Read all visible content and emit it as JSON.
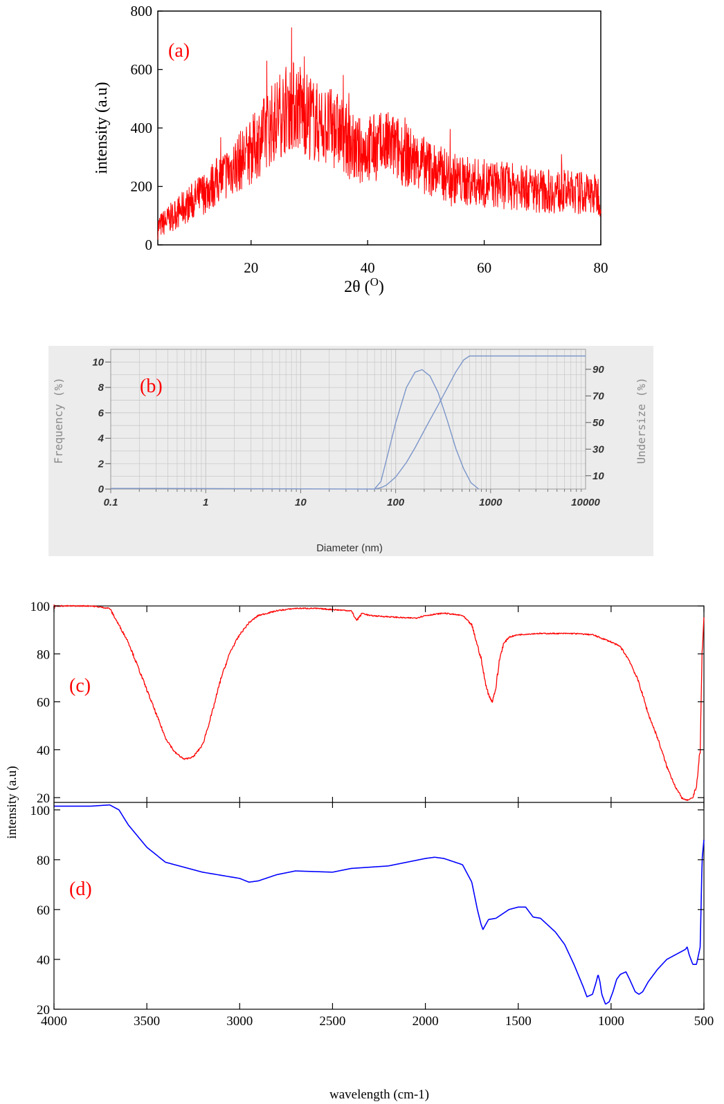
{
  "colors": {
    "xrd": "#ff0000",
    "dls": "#7b95c9",
    "ftir_c": "#ff0000",
    "ftir_d": "#0000ff",
    "panel_label": "#ff0000",
    "dls_background": "#ececec",
    "dls_grid": "#c8c8c8",
    "dls_text": "#8a8a8a"
  },
  "chart_data": [
    {
      "panel": "a",
      "panel_label": "(a)",
      "type": "line",
      "noisy": true,
      "xlabel": "2θ (O)",
      "ylabel": "intensity (a.u)",
      "xlim": [
        4,
        80
      ],
      "ylim": [
        0,
        800
      ],
      "xticks": [
        20,
        40,
        60,
        80
      ],
      "yticks": [
        0,
        200,
        400,
        600,
        800
      ],
      "series": [
        {
          "x": [
            4,
            8,
            12,
            16,
            20,
            23,
            26,
            28,
            31,
            35,
            38,
            40,
            44,
            48,
            52,
            56,
            60,
            65,
            70,
            75,
            80
          ],
          "y": [
            60,
            120,
            180,
            250,
            320,
            400,
            470,
            480,
            420,
            390,
            320,
            330,
            340,
            290,
            250,
            220,
            210,
            200,
            185,
            180,
            170
          ]
        }
      ],
      "peak_max": 750
    },
    {
      "panel": "b",
      "panel_label": "(b)",
      "type": "line",
      "xscale": "log",
      "xlabel": "Diameter (nm)",
      "ylabel": "Frequency (%)",
      "y2label": "Undersize (%)",
      "xlim": [
        0.1,
        10000
      ],
      "ylim": [
        0,
        11
      ],
      "y2lim": [
        0,
        105
      ],
      "xticks": [
        "0.1",
        "1",
        "10",
        "100",
        "1000",
        "10000"
      ],
      "yticks": [
        "0",
        "2",
        "4",
        "6",
        "8",
        "10"
      ],
      "y2ticks": [
        "10",
        "30",
        "50",
        "70",
        "90"
      ],
      "grid": true,
      "series": [
        {
          "axis": "left",
          "x": [
            0.1,
            0.28,
            60,
            70,
            80,
            100,
            130,
            160,
            190,
            230,
            280,
            350,
            430,
            520,
            620,
            750
          ],
          "y": [
            0.05,
            0.05,
            0,
            0.6,
            2.3,
            5.2,
            8.0,
            9.2,
            9.4,
            8.9,
            7.6,
            5.4,
            3.2,
            1.6,
            0.5,
            0
          ]
        },
        {
          "axis": "right",
          "x": [
            60,
            70,
            80,
            100,
            130,
            160,
            190,
            230,
            280,
            350,
            430,
            520,
            600,
            700,
            10000
          ],
          "y": [
            0,
            1,
            3,
            9,
            20,
            31,
            41,
            52,
            63,
            76,
            88,
            97,
            100,
            100,
            100
          ]
        }
      ]
    },
    {
      "panel": "c",
      "panel_label": "(c)",
      "type": "line",
      "xlim": [
        4000,
        500
      ],
      "ylim": [
        18,
        100
      ],
      "yticks": [
        20,
        40,
        60,
        80,
        100
      ],
      "series": [
        {
          "x": [
            4000,
            3800,
            3700,
            3600,
            3500,
            3400,
            3350,
            3300,
            3250,
            3200,
            3150,
            3100,
            3050,
            3000,
            2950,
            2900,
            2800,
            2700,
            2600,
            2400,
            2370,
            2340,
            2300,
            2100,
            2050,
            2000,
            1900,
            1800,
            1750,
            1700,
            1680,
            1660,
            1640,
            1620,
            1600,
            1580,
            1550,
            1500,
            1400,
            1200,
            1100,
            1000,
            950,
            900,
            850,
            800,
            750,
            700,
            650,
            620,
            600,
            580,
            560,
            540,
            520,
            510,
            500
          ],
          "y": [
            100,
            100,
            99,
            85,
            65,
            45,
            39,
            36,
            37,
            42,
            55,
            70,
            81,
            88,
            93,
            96,
            98,
            99,
            99,
            98,
            94,
            97,
            96,
            95,
            95,
            96,
            97,
            96,
            92,
            78,
            69,
            63,
            60,
            66,
            78,
            84,
            87,
            88,
            88.5,
            88.5,
            88,
            85,
            83,
            77,
            68,
            55,
            45,
            33,
            24,
            20,
            19,
            19,
            20,
            25,
            40,
            80,
            95
          ]
        }
      ]
    },
    {
      "panel": "d",
      "panel_label": "(d)",
      "type": "line",
      "xlabel": "wavelength (cm-1)",
      "shared_ylabel": "intensity (a.u)",
      "xlim": [
        4000,
        500
      ],
      "ylim": [
        20,
        103
      ],
      "xticks": [
        4000,
        3500,
        3000,
        2500,
        2000,
        1500,
        1000,
        500
      ],
      "yticks": [
        20,
        40,
        60,
        80,
        100
      ],
      "series": [
        {
          "x": [
            4000,
            3800,
            3700,
            3650,
            3600,
            3500,
            3400,
            3200,
            3000,
            2950,
            2900,
            2800,
            2700,
            2500,
            2400,
            2200,
            2100,
            2000,
            1950,
            1900,
            1800,
            1750,
            1720,
            1700,
            1690,
            1660,
            1620,
            1550,
            1500,
            1460,
            1420,
            1380,
            1300,
            1250,
            1200,
            1150,
            1130,
            1100,
            1080,
            1070,
            1060,
            1050,
            1030,
            1010,
            990,
            970,
            950,
            920,
            900,
            870,
            850,
            830,
            800,
            750,
            700,
            650,
            600,
            590,
            580,
            560,
            540,
            520,
            510,
            500
          ],
          "y": [
            101.5,
            101.5,
            102,
            100,
            94,
            85,
            79,
            75,
            72.5,
            71,
            71.5,
            74,
            75.5,
            75,
            76.5,
            77.5,
            79,
            80.5,
            81,
            80.5,
            78,
            71,
            60,
            54,
            52,
            56,
            56.5,
            60,
            61,
            61,
            57,
            56.5,
            51,
            46,
            38,
            29,
            25,
            26,
            31,
            34,
            31,
            26,
            22,
            23,
            27,
            32,
            34,
            35,
            32,
            27,
            26,
            27,
            31,
            36,
            40,
            42,
            44,
            45,
            42,
            38,
            38,
            45,
            80,
            88
          ]
        }
      ]
    }
  ]
}
